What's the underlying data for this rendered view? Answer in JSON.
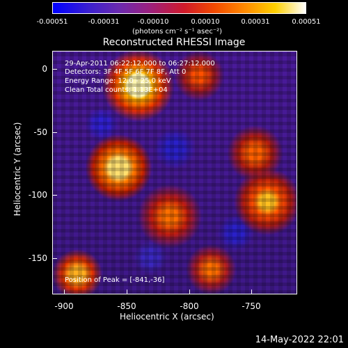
{
  "colorbar": {
    "ticks": [
      "-0.00051",
      "-0.00031",
      "-0.00010",
      "0.00010",
      "0.00031",
      "0.00051"
    ],
    "unit": "(photons cm⁻² s⁻¹ asec⁻²)"
  },
  "title": "Reconstructed RHESSI Image",
  "annotations": {
    "time": "29-Apr-2011 06:22:12.000 to 06:27:12.000",
    "detectors": "Detectors: 3F 4F 5F 6F 7F 8F, Att 0",
    "energy": "Energy Range: 12.0 - 25.0 keV",
    "clean": "Clean     Total counts: 1.13E+04",
    "peak": "Position of Peak = [-841,-36]"
  },
  "axes": {
    "xlabel": "Heliocentric X (arcsec)",
    "ylabel": "Heliocentric Y (arcsec)",
    "xticks": [
      "-900",
      "-850",
      "-800",
      "-750"
    ],
    "yticks": [
      "0",
      "-50",
      "-100",
      "-150"
    ]
  },
  "footer": "14-May-2022 22:01"
}
